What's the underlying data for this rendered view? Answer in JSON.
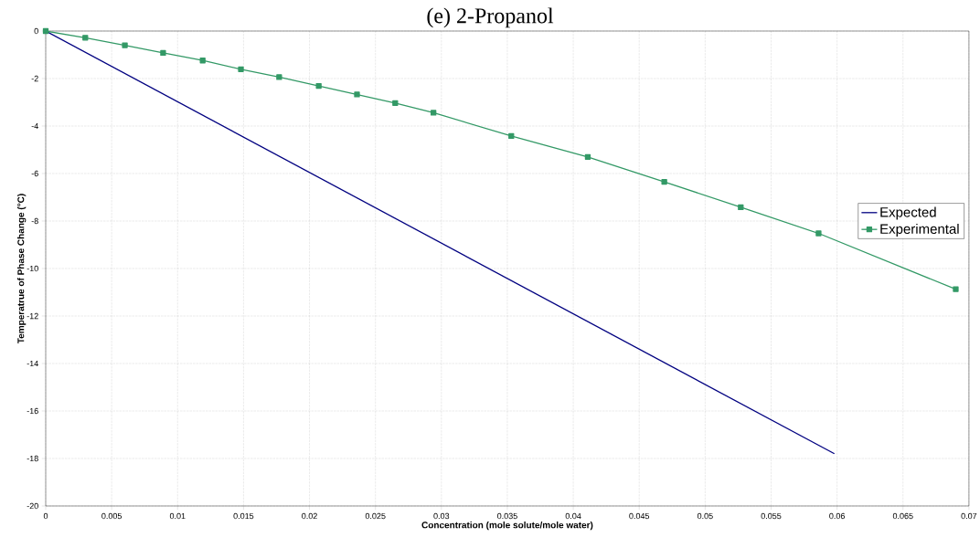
{
  "chart_data": {
    "type": "line",
    "title": "(e) 2-Propanol",
    "xlabel": "Concentration (mole solute/mole water)",
    "ylabel": "Temperatrue of Phase Change (°C)",
    "xlim": [
      0,
      0.07
    ],
    "xticks": [
      0,
      0.005,
      0.01,
      0.015,
      0.02,
      0.025,
      0.03,
      0.035,
      0.04,
      0.045,
      0.05,
      0.055,
      0.06,
      0.065,
      0.07
    ],
    "ylim": [
      -20,
      0
    ],
    "yticks": [
      -20,
      -18,
      -16,
      -14,
      -12,
      -10,
      -8,
      -6,
      -4,
      -2,
      0
    ],
    "grid": true,
    "legend": "right",
    "series": [
      {
        "name": "Expected",
        "color": "#000080",
        "marker": "none",
        "x": [
          0,
          0.0598
        ],
        "values": [
          0,
          -17.8
        ]
      },
      {
        "name": "Experimental",
        "color": "#339966",
        "marker": "square",
        "x": [
          0,
          0.003,
          0.006,
          0.0089,
          0.0119,
          0.0148,
          0.0177,
          0.0207,
          0.0236,
          0.0265,
          0.0294,
          0.0353,
          0.0411,
          0.0469,
          0.0527,
          0.0586,
          0.069
        ],
        "values": [
          0,
          -0.28,
          -0.6,
          -0.92,
          -1.24,
          -1.61,
          -1.94,
          -2.31,
          -2.67,
          -3.03,
          -3.44,
          -4.42,
          -5.3,
          -6.35,
          -7.42,
          -8.52,
          -10.87
        ]
      }
    ]
  }
}
